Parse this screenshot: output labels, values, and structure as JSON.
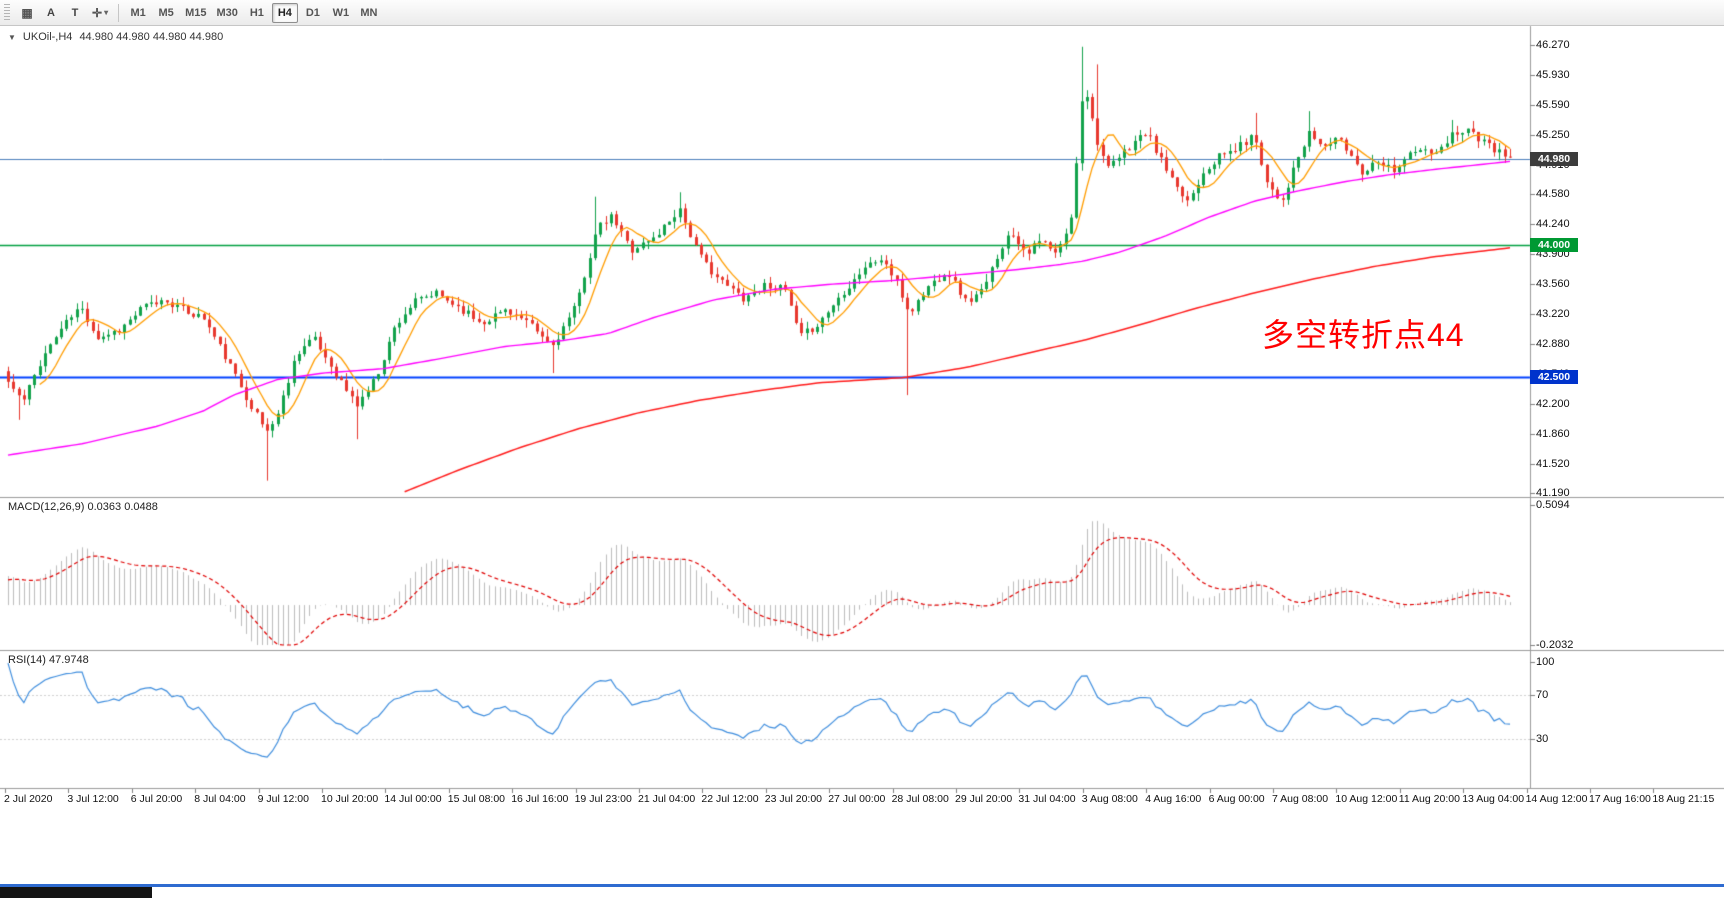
{
  "toolbar": {
    "a_button": "A",
    "t_button": "T",
    "timeframes": [
      "M1",
      "M5",
      "M15",
      "M30",
      "H1",
      "H4",
      "D1",
      "W1",
      "MN"
    ],
    "selected_timeframe": "H4"
  },
  "icons": {
    "grid": "▦",
    "crosshair": "✛",
    "caret_down": "▾",
    "collapse_triangle": "▼"
  },
  "main_chart": {
    "symbol": "UKOil-,H4",
    "ohlc": "44.980 44.980 44.980 44.980",
    "annotation": "多空转折点44",
    "annotation_color": "#ff0000",
    "price_axis_labels": [
      "46.270",
      "45.930",
      "45.590",
      "45.250",
      "44.910",
      "44.580",
      "44.240",
      "43.900",
      "43.560",
      "43.220",
      "42.880",
      "42.540",
      "42.200",
      "41.860",
      "41.520",
      "41.190"
    ]
  },
  "macd_panel": {
    "name": "MACD(12,26,9)",
    "value_main": "0.0363",
    "value_signal": "0.0488",
    "axis_top": "0.5094",
    "axis_bottom": "-0.2032"
  },
  "rsi_panel": {
    "name": "RSI(14)",
    "value": "47.9748",
    "axis_labels": [
      "100",
      "70",
      "30"
    ]
  },
  "time_axis": [
    "2 Jul 2020",
    "3 Jul 12:00",
    "6 Jul 20:00",
    "8 Jul 04:00",
    "9 Jul 12:00",
    "10 Jul 20:00",
    "14 Jul 00:00",
    "15 Jul 08:00",
    "16 Jul 16:00",
    "19 Jul 23:00",
    "21 Jul 04:00",
    "22 Jul 12:00",
    "23 Jul 20:00",
    "27 Jul 00:00",
    "28 Jul 08:00",
    "29 Jul 20:00",
    "31 Jul 04:00",
    "3 Aug 08:00",
    "4 Aug 16:00",
    "6 Aug 00:00",
    "7 Aug 08:00",
    "10 Aug 12:00",
    "11 Aug 20:00",
    "13 Aug 04:00",
    "14 Aug 12:00",
    "17 Aug 16:00",
    "18 Aug 21:15"
  ],
  "chart_data": {
    "type": "candlestick",
    "symbol": "UKOil-",
    "timeframe": "H4",
    "visible_price_range": [
      41.19,
      46.27
    ],
    "n_candles": 285,
    "noise_seed": 11,
    "close_anchors": [
      [
        0.0,
        42.45
      ],
      [
        0.01,
        42.22
      ],
      [
        0.022,
        42.7
      ],
      [
        0.035,
        43.05
      ],
      [
        0.048,
        43.3
      ],
      [
        0.06,
        42.95
      ],
      [
        0.075,
        43.05
      ],
      [
        0.09,
        43.3
      ],
      [
        0.105,
        43.38
      ],
      [
        0.118,
        43.25
      ],
      [
        0.13,
        43.18
      ],
      [
        0.145,
        42.72
      ],
      [
        0.158,
        42.3
      ],
      [
        0.172,
        41.88
      ],
      [
        0.18,
        42.1
      ],
      [
        0.192,
        42.78
      ],
      [
        0.203,
        42.95
      ],
      [
        0.218,
        42.55
      ],
      [
        0.232,
        42.18
      ],
      [
        0.245,
        42.5
      ],
      [
        0.258,
        43.1
      ],
      [
        0.27,
        43.35
      ],
      [
        0.285,
        43.45
      ],
      [
        0.3,
        43.3
      ],
      [
        0.315,
        43.12
      ],
      [
        0.332,
        43.28
      ],
      [
        0.348,
        43.08
      ],
      [
        0.362,
        42.85
      ],
      [
        0.378,
        43.3
      ],
      [
        0.392,
        44.18
      ],
      [
        0.402,
        44.32
      ],
      [
        0.415,
        43.95
      ],
      [
        0.43,
        44.08
      ],
      [
        0.447,
        44.42
      ],
      [
        0.46,
        43.88
      ],
      [
        0.475,
        43.58
      ],
      [
        0.49,
        43.4
      ],
      [
        0.505,
        43.56
      ],
      [
        0.518,
        43.48
      ],
      [
        0.527,
        42.95
      ],
      [
        0.54,
        43.12
      ],
      [
        0.555,
        43.45
      ],
      [
        0.57,
        43.75
      ],
      [
        0.582,
        43.85
      ],
      [
        0.592,
        43.55
      ],
      [
        0.6,
        43.22
      ],
      [
        0.612,
        43.52
      ],
      [
        0.625,
        43.72
      ],
      [
        0.638,
        43.35
      ],
      [
        0.65,
        43.5
      ],
      [
        0.66,
        43.95
      ],
      [
        0.668,
        44.15
      ],
      [
        0.678,
        43.92
      ],
      [
        0.688,
        44.05
      ],
      [
        0.698,
        43.88
      ],
      [
        0.708,
        44.3
      ],
      [
        0.716,
        45.9
      ],
      [
        0.724,
        45.25
      ],
      [
        0.732,
        44.85
      ],
      [
        0.74,
        45.0
      ],
      [
        0.75,
        45.18
      ],
      [
        0.758,
        45.28
      ],
      [
        0.768,
        44.95
      ],
      [
        0.778,
        44.62
      ],
      [
        0.786,
        44.5
      ],
      [
        0.796,
        44.85
      ],
      [
        0.806,
        45.0
      ],
      [
        0.818,
        45.1
      ],
      [
        0.83,
        45.25
      ],
      [
        0.838,
        44.72
      ],
      [
        0.848,
        44.5
      ],
      [
        0.858,
        44.95
      ],
      [
        0.867,
        45.28
      ],
      [
        0.875,
        45.1
      ],
      [
        0.884,
        45.22
      ],
      [
        0.893,
        45.05
      ],
      [
        0.902,
        44.82
      ],
      [
        0.912,
        44.98
      ],
      [
        0.922,
        44.85
      ],
      [
        0.932,
        45.02
      ],
      [
        0.942,
        45.08
      ],
      [
        0.952,
        45.02
      ],
      [
        0.962,
        45.28
      ],
      [
        0.972,
        45.32
      ],
      [
        0.983,
        45.15
      ],
      [
        1.0,
        44.98
      ]
    ],
    "wick_overrides": [
      {
        "t": 0.008,
        "low": 42.02
      },
      {
        "t": 0.172,
        "low": 41.33
      },
      {
        "t": 0.232,
        "low": 41.8
      },
      {
        "t": 0.362,
        "low": 42.55
      },
      {
        "t": 0.392,
        "high": 44.55
      },
      {
        "t": 0.447,
        "high": 44.6
      },
      {
        "t": 0.6,
        "low": 42.3
      },
      {
        "t": 0.716,
        "high": 46.25
      },
      {
        "t": 0.724,
        "high": 46.05
      },
      {
        "t": 0.83,
        "high": 45.5
      },
      {
        "t": 0.867,
        "high": 45.52
      },
      {
        "t": 0.962,
        "high": 45.42
      }
    ],
    "horizontal_levels": [
      {
        "name": "current-price-badge",
        "price": 44.98,
        "color": "#4a7ebb",
        "width": 1,
        "badge": "44.980",
        "badge_bg": "#3c3c3c"
      },
      {
        "name": "green-level-badge",
        "price": 44.0,
        "color": "#00a040",
        "width": 1.5,
        "badge": "44.000",
        "badge_bg": "#009933"
      },
      {
        "name": "blue-level-badge",
        "price": 42.5,
        "color": "#0040ff",
        "width": 2,
        "badge": "42.500",
        "badge_bg": "#0033cc"
      }
    ],
    "moving_averages": {
      "fast": {
        "period": 7,
        "color": "#ff9d00"
      },
      "medium": {
        "color": "#ff00ff",
        "anchors": [
          [
            0.0,
            41.62
          ],
          [
            0.05,
            41.75
          ],
          [
            0.1,
            41.95
          ],
          [
            0.13,
            42.12
          ],
          [
            0.15,
            42.3
          ],
          [
            0.18,
            42.48
          ],
          [
            0.21,
            42.55
          ],
          [
            0.25,
            42.6
          ],
          [
            0.29,
            42.72
          ],
          [
            0.33,
            42.85
          ],
          [
            0.37,
            42.92
          ],
          [
            0.4,
            43.0
          ],
          [
            0.43,
            43.18
          ],
          [
            0.47,
            43.38
          ],
          [
            0.51,
            43.5
          ],
          [
            0.55,
            43.56
          ],
          [
            0.59,
            43.6
          ],
          [
            0.63,
            43.66
          ],
          [
            0.67,
            43.72
          ],
          [
            0.7,
            43.78
          ],
          [
            0.716,
            43.82
          ],
          [
            0.74,
            43.92
          ],
          [
            0.77,
            44.1
          ],
          [
            0.8,
            44.32
          ],
          [
            0.83,
            44.5
          ],
          [
            0.86,
            44.62
          ],
          [
            0.89,
            44.72
          ],
          [
            0.92,
            44.8
          ],
          [
            0.95,
            44.86
          ],
          [
            1.0,
            44.95
          ]
        ]
      },
      "slow": {
        "color": "#ff1a1a",
        "anchors": [
          [
            0.262,
            41.19
          ],
          [
            0.3,
            41.45
          ],
          [
            0.34,
            41.7
          ],
          [
            0.38,
            41.92
          ],
          [
            0.42,
            42.1
          ],
          [
            0.46,
            42.24
          ],
          [
            0.5,
            42.35
          ],
          [
            0.54,
            42.44
          ],
          [
            0.597,
            42.5
          ],
          [
            0.64,
            42.62
          ],
          [
            0.68,
            42.78
          ],
          [
            0.716,
            42.92
          ],
          [
            0.75,
            43.08
          ],
          [
            0.79,
            43.28
          ],
          [
            0.83,
            43.46
          ],
          [
            0.87,
            43.62
          ],
          [
            0.91,
            43.76
          ],
          [
            0.95,
            43.87
          ],
          [
            1.0,
            43.97
          ]
        ]
      }
    },
    "candle_colors": {
      "bull": "#12a24b",
      "bear": "#e8382e"
    },
    "macd": {
      "params": [
        12,
        26,
        9
      ],
      "axis_range": [
        -0.2032,
        0.5094
      ],
      "hist_color": "#bdbdbd",
      "signal_color": "#e00000"
    },
    "rsi": {
      "period": 14,
      "axis_range": [
        0,
        100
      ],
      "levels": [
        70,
        30
      ],
      "color": "#3f8ede"
    }
  }
}
